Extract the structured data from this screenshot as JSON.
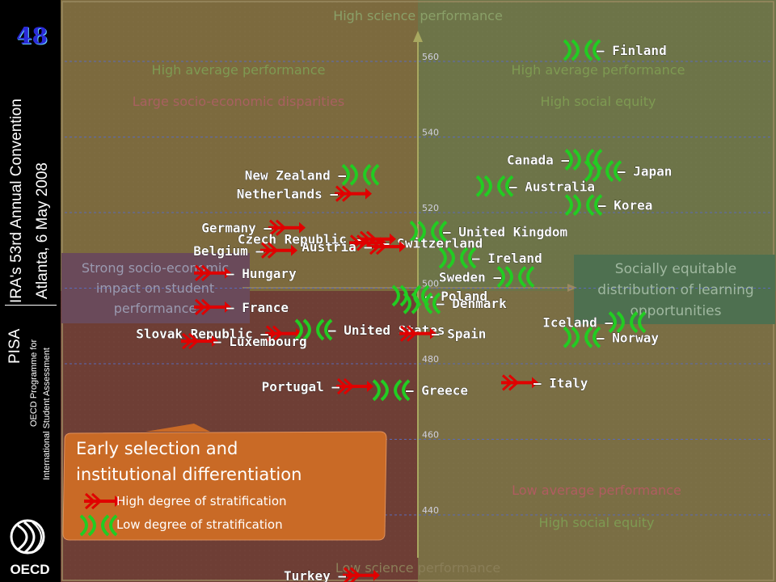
{
  "sidebar": {
    "slide_number": "48",
    "convention_line1": "IRA's 53rd Annual Convention",
    "convention_line2": "Atlanta, 6 May 2008",
    "pisa": "PISA",
    "programme_line1": "OECD Programme for",
    "programme_line2": "International Student Assessment",
    "logo_text": "OECD"
  },
  "quadrant_labels": {
    "top_axis": "High science performance",
    "bottom_axis": "Low science performance",
    "top_left_1": "High average performance",
    "top_left_2": "Large socio-economic disparities",
    "top_right_1": "High average performance",
    "top_right_2": "High social equity",
    "bottom_right_1": "Low average performance",
    "bottom_right_2": "High social equity",
    "left_box": "Strong socio-economic impact on student performance",
    "right_box": "Socially equitable distribution of learning opportunities"
  },
  "legend": {
    "title": "Early selection and institutional differentiation",
    "high": "High degree of stratification",
    "low": "Low degree of stratification",
    "high_color": "#e00000",
    "low_color": "#22cc22"
  },
  "chart_data": {
    "type": "scatter",
    "yticks": [
      440,
      460,
      480,
      500,
      520,
      540,
      560
    ],
    "ylim": [
      424,
      576
    ],
    "grid": true,
    "points": [
      {
        "label": "Finland",
        "group": "low",
        "y": 563
      },
      {
        "label": "Canada",
        "group": "low",
        "y": 534
      },
      {
        "label": "Japan",
        "group": "low",
        "y": 531
      },
      {
        "label": "Australia",
        "group": "low",
        "y": 527
      },
      {
        "label": "Korea",
        "group": "low",
        "y": 522
      },
      {
        "label": "New Zealand",
        "group": "low",
        "y": 530
      },
      {
        "label": "Netherlands",
        "group": "high",
        "y": 525
      },
      {
        "label": "Germany",
        "group": "high",
        "y": 516
      },
      {
        "label": "Czech Republic",
        "group": "high",
        "y": 513
      },
      {
        "label": "United Kingdom",
        "group": "low",
        "y": 515
      },
      {
        "label": "Switzerland",
        "group": "high",
        "y": 512
      },
      {
        "label": "Austria",
        "group": "high",
        "y": 511
      },
      {
        "label": "Belgium",
        "group": "high",
        "y": 510
      },
      {
        "label": "Ireland",
        "group": "low",
        "y": 508
      },
      {
        "label": "Hungary",
        "group": "high",
        "y": 504
      },
      {
        "label": "Sweden",
        "group": "low",
        "y": 503
      },
      {
        "label": "Poland",
        "group": "low",
        "y": 498
      },
      {
        "label": "Denmark",
        "group": "low",
        "y": 496
      },
      {
        "label": "France",
        "group": "high",
        "y": 495
      },
      {
        "label": "Iceland",
        "group": "low",
        "y": 491
      },
      {
        "label": "Slovak Republic",
        "group": "high",
        "y": 488
      },
      {
        "label": "United States",
        "group": "low",
        "y": 489
      },
      {
        "label": "Spain",
        "group": "high",
        "y": 488
      },
      {
        "label": "Norway",
        "group": "low",
        "y": 487
      },
      {
        "label": "Luxembourg",
        "group": "high",
        "y": 486
      },
      {
        "label": "Italy",
        "group": "high",
        "y": 475
      },
      {
        "label": "Portugal",
        "group": "high",
        "y": 474
      },
      {
        "label": "Greece",
        "group": "low",
        "y": 473
      },
      {
        "label": "Turkey",
        "group": "high",
        "y": 424
      }
    ]
  }
}
